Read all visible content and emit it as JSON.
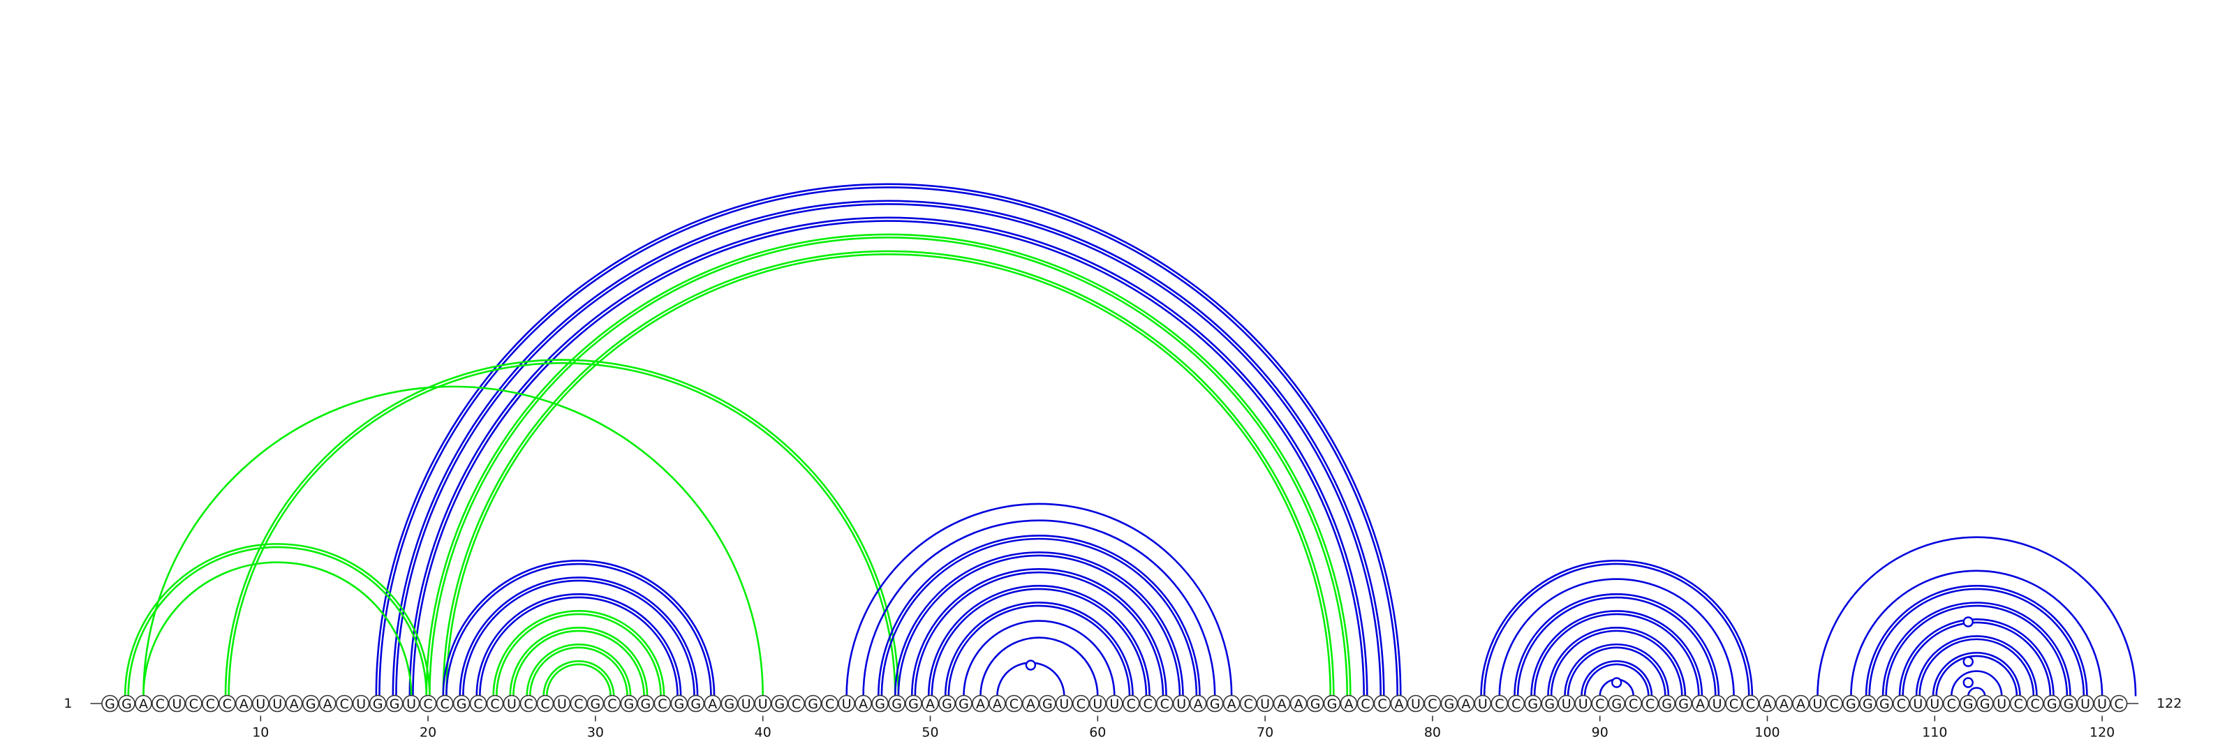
{
  "sequence": "GGACUCCCAUUAGACUGGUCCGCCUCCUCGCGGCGGAGUUGCGCUAGGGAGGAACAGUCUUCCCUAGACUAAGGACCAUCGAUCCGGUUCGCCGGAUCCAAAUCGGGCUUCGGUCCGGUUC",
  "start_label": "1",
  "end_label": "122",
  "ticks": [
    {
      "pos": 10,
      "label": "10"
    },
    {
      "pos": 20,
      "label": "20"
    },
    {
      "pos": 30,
      "label": "30"
    },
    {
      "pos": 40,
      "label": "40"
    },
    {
      "pos": 50,
      "label": "50"
    },
    {
      "pos": 60,
      "label": "60"
    },
    {
      "pos": 70,
      "label": "70"
    },
    {
      "pos": 80,
      "label": "80"
    },
    {
      "pos": 90,
      "label": "90"
    },
    {
      "pos": 100,
      "label": "100"
    },
    {
      "pos": 110,
      "label": "110"
    },
    {
      "pos": 120,
      "label": "120"
    }
  ],
  "colors": {
    "blue": "#0000dd",
    "green": "#00ee00"
  },
  "arcs": [
    {
      "i": 17,
      "j": 78,
      "color": "blue",
      "double": true
    },
    {
      "i": 18,
      "j": 77,
      "color": "blue",
      "double": true
    },
    {
      "i": 19,
      "j": 76,
      "color": "blue",
      "double": true
    },
    {
      "i": 20,
      "j": 75,
      "color": "green",
      "double": true
    },
    {
      "i": 21,
      "j": 74,
      "color": "green",
      "double": true
    },
    {
      "i": 21,
      "j": 37,
      "color": "blue",
      "double": true
    },
    {
      "i": 22,
      "j": 36,
      "color": "blue",
      "double": true
    },
    {
      "i": 23,
      "j": 35,
      "color": "blue",
      "double": true
    },
    {
      "i": 24,
      "j": 34,
      "color": "green",
      "double": true
    },
    {
      "i": 25,
      "j": 33,
      "color": "green",
      "double": true
    },
    {
      "i": 26,
      "j": 32,
      "color": "green",
      "double": true
    },
    {
      "i": 27,
      "j": 31,
      "color": "green",
      "double": true
    },
    {
      "i": 2,
      "j": 20,
      "color": "green",
      "double": true
    },
    {
      "i": 3,
      "j": 19,
      "color": "green",
      "double": false
    },
    {
      "i": 8,
      "j": 48,
      "color": "green",
      "double": true
    },
    {
      "i": 3,
      "j": 40,
      "color": "green",
      "double": false
    },
    {
      "i": 45,
      "j": 68,
      "color": "blue",
      "double": false
    },
    {
      "i": 46,
      "j": 67,
      "color": "blue",
      "double": false
    },
    {
      "i": 47,
      "j": 66,
      "color": "blue",
      "double": true
    },
    {
      "i": 48,
      "j": 65,
      "color": "blue",
      "double": true
    },
    {
      "i": 49,
      "j": 64,
      "color": "blue",
      "double": true
    },
    {
      "i": 50,
      "j": 63,
      "color": "blue",
      "double": true
    },
    {
      "i": 51,
      "j": 62,
      "color": "blue",
      "double": true
    },
    {
      "i": 52,
      "j": 61,
      "color": "blue",
      "double": false
    },
    {
      "i": 53,
      "j": 60,
      "color": "blue",
      "double": false
    },
    {
      "i": 54,
      "j": 58,
      "color": "blue",
      "double": false
    },
    {
      "i": 83,
      "j": 99,
      "color": "blue",
      "double": true
    },
    {
      "i": 84,
      "j": 98,
      "color": "blue",
      "double": false
    },
    {
      "i": 85,
      "j": 97,
      "color": "blue",
      "double": true
    },
    {
      "i": 86,
      "j": 96,
      "color": "blue",
      "double": true
    },
    {
      "i": 87,
      "j": 95,
      "color": "blue",
      "double": true
    },
    {
      "i": 88,
      "j": 94,
      "color": "blue",
      "double": true
    },
    {
      "i": 89,
      "j": 93,
      "color": "blue",
      "double": true
    },
    {
      "i": 90,
      "j": 92,
      "color": "blue",
      "double": false
    },
    {
      "i": 103,
      "j": 122,
      "color": "blue",
      "double": false
    },
    {
      "i": 105,
      "j": 120,
      "color": "blue",
      "double": false
    },
    {
      "i": 106,
      "j": 119,
      "color": "blue",
      "double": true
    },
    {
      "i": 107,
      "j": 118,
      "color": "blue",
      "double": true
    },
    {
      "i": 108,
      "j": 117,
      "color": "blue",
      "double": true
    },
    {
      "i": 109,
      "j": 116,
      "color": "blue",
      "double": true
    },
    {
      "i": 110,
      "j": 115,
      "color": "blue",
      "double": true
    },
    {
      "i": 111,
      "j": 114,
      "color": "blue",
      "double": false
    },
    {
      "i": 112,
      "j": 113,
      "color": "blue",
      "double": false
    }
  ],
  "markers": [
    {
      "pos": 56,
      "level": 55,
      "color": "blue"
    },
    {
      "pos": 91,
      "level": 30,
      "color": "blue"
    },
    {
      "pos": 112,
      "level": 117,
      "color": "blue"
    },
    {
      "pos": 112,
      "level": 60,
      "color": "blue"
    },
    {
      "pos": 112,
      "level": 30,
      "color": "blue"
    }
  ]
}
